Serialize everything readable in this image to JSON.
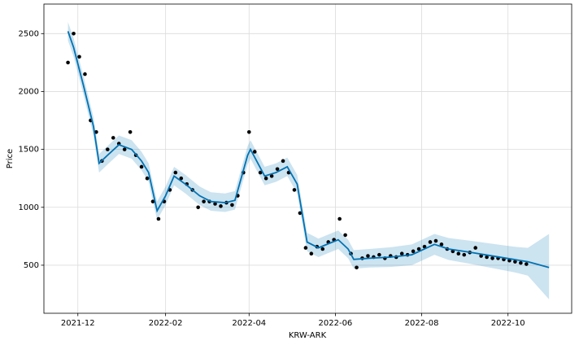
{
  "chart_data": {
    "type": "line",
    "xlabel": "KRW-ARK",
    "ylabel": "Price",
    "xlim": [
      "2021-11-07",
      "2022-11-15"
    ],
    "xticks": [
      {
        "value": "2021-12-01",
        "label": "2021-12"
      },
      {
        "value": "2022-02-01",
        "label": "2022-02"
      },
      {
        "value": "2022-04-01",
        "label": "2022-04"
      },
      {
        "value": "2022-06-01",
        "label": "2022-06"
      },
      {
        "value": "2022-08-01",
        "label": "2022-08"
      },
      {
        "value": "2022-10-01",
        "label": "2022-10"
      }
    ],
    "ylim": [
      85,
      2755
    ],
    "yticks": [
      500,
      1000,
      1500,
      2000,
      2500
    ],
    "grid": true,
    "observed": {
      "color": "#000000",
      "x": [
        "2021-11-24",
        "2021-11-28",
        "2021-12-02",
        "2021-12-06",
        "2021-12-10",
        "2021-12-14",
        "2021-12-18",
        "2021-12-22",
        "2021-12-26",
        "2021-12-30",
        "2022-01-03",
        "2022-01-07",
        "2022-01-11",
        "2022-01-15",
        "2022-01-19",
        "2022-01-23",
        "2022-01-27",
        "2022-01-31",
        "2022-02-04",
        "2022-02-08",
        "2022-02-12",
        "2022-02-16",
        "2022-02-20",
        "2022-02-24",
        "2022-02-28",
        "2022-03-04",
        "2022-03-08",
        "2022-03-12",
        "2022-03-16",
        "2022-03-20",
        "2022-03-24",
        "2022-03-28",
        "2022-04-01",
        "2022-04-05",
        "2022-04-09",
        "2022-04-13",
        "2022-04-17",
        "2022-04-21",
        "2022-04-25",
        "2022-04-29",
        "2022-05-03",
        "2022-05-07",
        "2022-05-11",
        "2022-05-15",
        "2022-05-19",
        "2022-05-23",
        "2022-05-27",
        "2022-05-31",
        "2022-06-04",
        "2022-06-08",
        "2022-06-12",
        "2022-06-16",
        "2022-06-20",
        "2022-06-24",
        "2022-06-28",
        "2022-07-02",
        "2022-07-06",
        "2022-07-10",
        "2022-07-14",
        "2022-07-18",
        "2022-07-22",
        "2022-07-26",
        "2022-07-30",
        "2022-08-03",
        "2022-08-07",
        "2022-08-11",
        "2022-08-15",
        "2022-08-19",
        "2022-08-23",
        "2022-08-27",
        "2022-08-31",
        "2022-09-04",
        "2022-09-08",
        "2022-09-12",
        "2022-09-16",
        "2022-09-20",
        "2022-09-24",
        "2022-09-28",
        "2022-10-02",
        "2022-10-06",
        "2022-10-10",
        "2022-10-14"
      ],
      "y": [
        2250,
        2500,
        2300,
        2150,
        1750,
        1650,
        1400,
        1500,
        1600,
        1550,
        1500,
        1650,
        1450,
        1350,
        1250,
        1050,
        900,
        1050,
        1150,
        1300,
        1250,
        1200,
        1150,
        1000,
        1050,
        1050,
        1030,
        1010,
        1040,
        1020,
        1100,
        1300,
        1650,
        1480,
        1300,
        1250,
        1270,
        1330,
        1400,
        1300,
        1150,
        950,
        650,
        600,
        660,
        640,
        700,
        720,
        900,
        760,
        600,
        480,
        560,
        580,
        570,
        590,
        560,
        580,
        570,
        600,
        590,
        620,
        640,
        660,
        700,
        710,
        680,
        640,
        620,
        600,
        590,
        610,
        650,
        580,
        570,
        560,
        560,
        550,
        540,
        530,
        520,
        510
      ]
    },
    "forecast": {
      "color": "#0072B2",
      "x": [
        "2021-11-24",
        "2021-11-28",
        "2021-12-05",
        "2021-12-12",
        "2021-12-16",
        "2021-12-22",
        "2021-12-30",
        "2022-01-08",
        "2022-01-15",
        "2022-01-20",
        "2022-01-26",
        "2022-02-01",
        "2022-02-07",
        "2022-02-15",
        "2022-02-25",
        "2022-03-05",
        "2022-03-15",
        "2022-03-22",
        "2022-03-31",
        "2022-04-02",
        "2022-04-12",
        "2022-04-20",
        "2022-04-28",
        "2022-05-05",
        "2022-05-12",
        "2022-05-20",
        "2022-05-28",
        "2022-06-03",
        "2022-06-10",
        "2022-06-14",
        "2022-06-25",
        "2022-07-10",
        "2022-07-25",
        "2022-08-10",
        "2022-08-20",
        "2022-09-05",
        "2022-09-20",
        "2022-10-05",
        "2022-10-15",
        "2022-10-30"
      ],
      "yhat": [
        2520,
        2380,
        2050,
        1700,
        1380,
        1450,
        1540,
        1500,
        1400,
        1300,
        970,
        1100,
        1270,
        1200,
        1100,
        1050,
        1040,
        1060,
        1450,
        1500,
        1270,
        1300,
        1350,
        1200,
        700,
        650,
        690,
        720,
        640,
        550,
        560,
        570,
        590,
        680,
        640,
        610,
        580,
        550,
        530,
        480
      ],
      "lower": [
        2440,
        2300,
        1970,
        1620,
        1300,
        1370,
        1460,
        1420,
        1320,
        1220,
        890,
        1020,
        1190,
        1120,
        1020,
        970,
        960,
        980,
        1370,
        1420,
        1190,
        1220,
        1270,
        1120,
        620,
        570,
        610,
        640,
        560,
        470,
        480,
        485,
        500,
        590,
        545,
        510,
        475,
        440,
        410,
        205
      ],
      "upper": [
        2600,
        2460,
        2130,
        1780,
        1460,
        1530,
        1620,
        1580,
        1480,
        1380,
        1050,
        1180,
        1350,
        1280,
        1180,
        1130,
        1120,
        1140,
        1530,
        1580,
        1350,
        1380,
        1430,
        1280,
        780,
        730,
        770,
        800,
        720,
        630,
        640,
        655,
        680,
        770,
        735,
        710,
        685,
        660,
        650,
        770
      ]
    }
  }
}
